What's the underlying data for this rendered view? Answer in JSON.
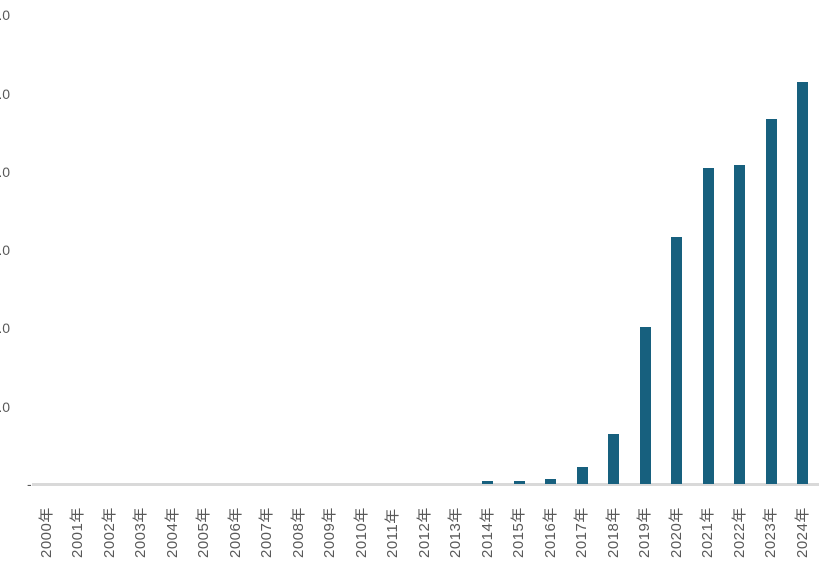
{
  "chart_data": {
    "type": "bar",
    "title": "",
    "xlabel": "",
    "ylabel": "",
    "categories": [
      "2000年",
      "2001年",
      "2002年",
      "2003年",
      "2004年",
      "2005年",
      "2006年",
      "2007年",
      "2008年",
      "2009年",
      "2010年",
      "2011年",
      "2012年",
      "2013年",
      "2014年",
      "2015年",
      "2016年",
      "2017年",
      "2018年",
      "2019年",
      "2020年",
      "2021年",
      "2022年",
      "2023年",
      "2024年"
    ],
    "values": [
      0,
      0,
      0,
      0,
      0,
      0,
      0,
      0,
      0,
      0,
      0,
      0,
      0,
      0,
      0.04,
      0.04,
      0.06,
      0.22,
      0.64,
      2.0,
      3.15,
      4.03,
      4.07,
      4.66,
      5.14
    ],
    "ylim": [
      0,
      6
    ],
    "y_tick_interval": 1.0,
    "y_axis": {
      "zero_label": "-",
      "tick_label_fragment": ".0",
      "ticks_above_zero": 6,
      "labels_clipped_at_left_edge": true
    },
    "grid": false,
    "legend": false,
    "colors": {
      "bar": "#17607e",
      "axis_line": "#d9d9d9",
      "labels": "#595959",
      "background": "#ffffff"
    }
  }
}
